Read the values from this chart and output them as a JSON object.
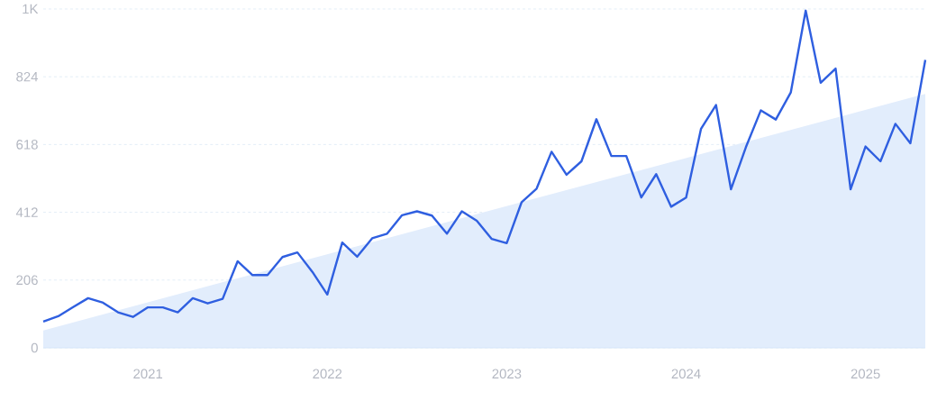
{
  "chart_data": {
    "type": "line",
    "x": [
      "2020-06",
      "2020-07",
      "2020-08",
      "2020-09",
      "2020-10",
      "2020-11",
      "2020-12",
      "2021-01",
      "2021-02",
      "2021-03",
      "2021-04",
      "2021-05",
      "2021-06",
      "2021-07",
      "2021-08",
      "2021-09",
      "2021-10",
      "2021-11",
      "2021-12",
      "2022-01",
      "2022-02",
      "2022-03",
      "2022-04",
      "2022-05",
      "2022-06",
      "2022-07",
      "2022-08",
      "2022-09",
      "2022-10",
      "2022-11",
      "2022-12",
      "2023-01",
      "2023-02",
      "2023-03",
      "2023-04",
      "2023-05",
      "2023-06",
      "2023-07",
      "2023-08",
      "2023-09",
      "2023-10",
      "2023-11",
      "2023-12",
      "2024-01",
      "2024-02",
      "2024-03",
      "2024-04",
      "2024-05",
      "2024-06",
      "2024-07",
      "2024-08",
      "2024-09",
      "2024-10",
      "2024-11",
      "2024-12",
      "2025-01",
      "2025-02",
      "2025-03",
      "2025-04",
      "2025-05"
    ],
    "series": [
      {
        "type": "area",
        "color": "#e2edfc",
        "x": [
          "2020-06",
          "2025-05"
        ],
        "values": [
          53,
          772
        ]
      },
      {
        "color": "#2f5fe0",
        "values": [
          80,
          96,
          124,
          151,
          137,
          108,
          94,
          123,
          123,
          108,
          151,
          135,
          149,
          263,
          221,
          221,
          276,
          290,
          231,
          162,
          320,
          277,
          333,
          347,
          403,
          415,
          402,
          347,
          415,
          386,
          331,
          318,
          443,
          484,
          596,
          526,
          567,
          695,
          583,
          583,
          457,
          528,
          429,
          457,
          666,
          738,
          482,
          610,
          722,
          694,
          776,
          1025,
          806,
          849,
          482,
          612,
          567,
          681,
          622,
          875
        ]
      }
    ],
    "xlim": [
      "2020-06",
      "2025-05"
    ],
    "xticks": [
      "2021",
      "2022",
      "2023",
      "2024",
      "2025"
    ],
    "ylim": [
      0,
      1030
    ],
    "yticks": [
      0,
      206,
      412,
      618,
      824,
      {
        "value": 1030,
        "label": "1K"
      }
    ],
    "grid": "y",
    "line_style": "solid",
    "marker": "none"
  }
}
